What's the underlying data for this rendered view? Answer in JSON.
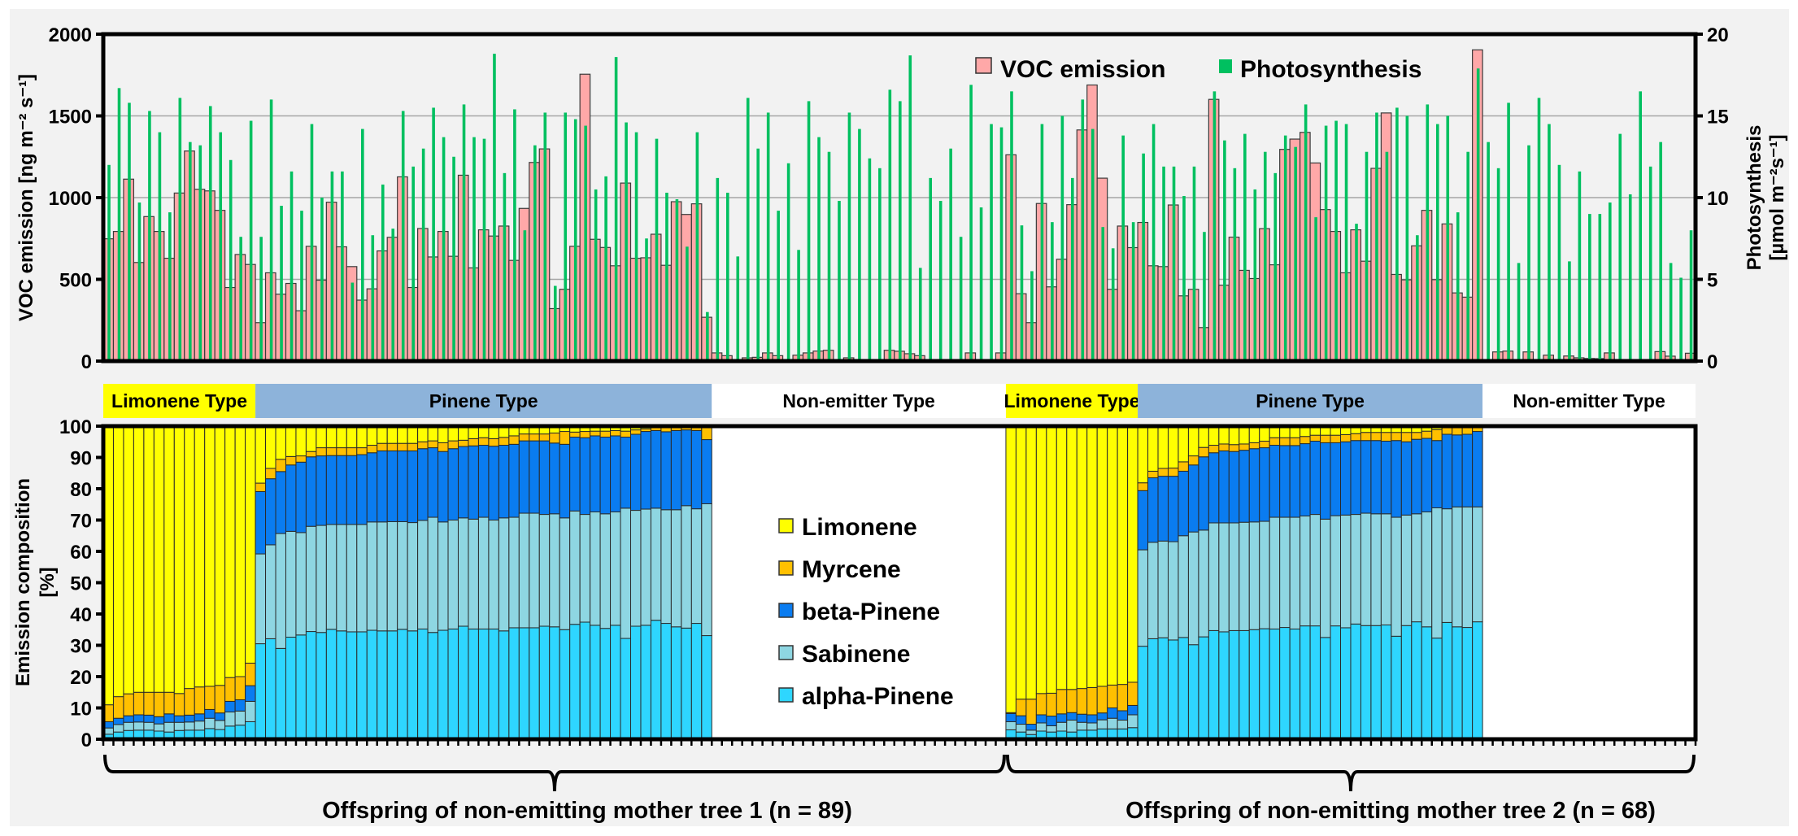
{
  "groups": [
    {
      "label": "Offspring of non-emitting mother tree 1 (n = 89)",
      "n": 89,
      "types": [
        {
          "name": "Limonene Type",
          "count": 15
        },
        {
          "name": "Pinene Type",
          "count": 45
        },
        {
          "name": "Non-emitter Type",
          "count": 29
        }
      ]
    },
    {
      "label": "Offspring of non-emitting mother tree 2 (n = 68)",
      "n": 68,
      "types": [
        {
          "name": "Limonene Type",
          "count": 13
        },
        {
          "name": "Pinene Type",
          "count": 34
        },
        {
          "name": "Non-emitter Type",
          "count": 21
        }
      ]
    }
  ],
  "type_colors": {
    "Limonene Type": "#ffff00",
    "Pinene Type": "#8db3da",
    "Non-emitter Type": "#ffffff"
  },
  "chart_data": [
    {
      "type": "bar",
      "title": "",
      "ylabel": "VOC emission [ng m⁻² s⁻¹]",
      "y2label": [
        "Photosynthesis",
        "[µmol m⁻²s⁻¹]"
      ],
      "ylim": [
        0,
        2000
      ],
      "yticks": [
        0,
        500,
        1000,
        1500,
        2000
      ],
      "y2lim": [
        0,
        20
      ],
      "y2ticks": [
        0,
        5,
        10,
        15,
        20
      ],
      "grid": true,
      "legend_position": "top-right",
      "series": [
        {
          "name": "VOC emission",
          "axis": "left",
          "color": "#ffa8a8",
          "values": [
            748,
            793,
            1113,
            603,
            884,
            793,
            629,
            1028,
            1285,
            1051,
            1041,
            922,
            450,
            652,
            591,
            235,
            540,
            409,
            475,
            308,
            702,
            495,
            972,
            699,
            578,
            373,
            442,
            674,
            757,
            1127,
            450,
            811,
            637,
            793,
            641,
            1137,
            570,
            803,
            765,
            826,
            616,
            934,
            1215,
            1298,
            321,
            439,
            702,
            1755,
            745,
            695,
            583,
            1089,
            629,
            632,
            776,
            586,
            975,
            897,
            962,
            268,
            50,
            33,
            0,
            20,
            23,
            50,
            33,
            0,
            36,
            50,
            61,
            66,
            0,
            20,
            0,
            0,
            0,
            66,
            60,
            45,
            33,
            0,
            0,
            0,
            0,
            50,
            0,
            0,
            50,
            1262,
            412,
            235,
            964,
            454,
            623,
            957,
            1414,
            1689,
            1119,
            439,
            826,
            694,
            848,
            583,
            578,
            955,
            399,
            439,
            205,
            1601,
            464,
            758,
            555,
            505,
            810,
            589,
            1295,
            1358,
            1399,
            1212,
            927,
            793,
            540,
            803,
            611,
            1179,
            1518,
            530,
            497,
            705,
            922,
            498,
            839,
            417,
            391,
            1904,
            0,
            56,
            61,
            0,
            56,
            0,
            36,
            0,
            31,
            20,
            16,
            15,
            50,
            0,
            0,
            0,
            0,
            58,
            30,
            0,
            48
          ]
        },
        {
          "name": "Photosynthesis",
          "axis": "right",
          "color": "#00c060",
          "values": [
            12.0,
            16.7,
            15.8,
            9.7,
            15.3,
            14.0,
            9.1,
            16.1,
            13.4,
            13.2,
            15.6,
            14.0,
            12.3,
            7.6,
            14.7,
            7.6,
            16.0,
            9.5,
            11.6,
            9.2,
            14.5,
            10.0,
            11.6,
            11.6,
            4.8,
            14.2,
            7.7,
            10.8,
            8.1,
            15.3,
            11.9,
            13.0,
            15.5,
            13.7,
            12.5,
            15.7,
            13.7,
            13.6,
            18.8,
            11.5,
            15.4,
            8.0,
            13.2,
            15.2,
            4.6,
            15.2,
            14.8,
            14.4,
            10.5,
            11.3,
            18.6,
            14.6,
            14.0,
            7.5,
            13.6,
            10.3,
            9.9,
            7.0,
            14.0,
            3.0,
            11.2,
            10.3,
            6.4,
            16.1,
            13.0,
            15.2,
            9.2,
            12.1,
            6.8,
            15.9,
            13.7,
            12.8,
            9.8,
            15.2,
            14.2,
            12.4,
            11.8,
            16.6,
            15.9,
            18.7,
            5.7,
            11.2,
            9.8,
            13.0,
            7.6,
            16.9,
            9.4,
            14.5,
            14.3,
            16.5,
            8.3,
            5.5,
            14.5,
            8.5,
            15.0,
            11.2,
            16.0,
            14.2,
            8.2,
            6.9,
            13.8,
            8.5,
            12.7,
            14.5,
            11.9,
            11.9,
            10.1,
            11.9,
            7.9,
            16.5,
            13.5,
            11.8,
            13.9,
            10.5,
            12.8,
            11.5,
            13.8,
            13.1,
            15.7,
            8.8,
            14.4,
            14.7,
            14.5,
            8.4,
            12.8,
            15.2,
            12.8,
            15.5,
            15.0,
            7.7,
            15.7,
            14.5,
            15.0,
            9.1,
            12.8,
            17.9,
            13.4,
            11.8,
            15.8,
            6.0,
            13.2,
            16.1,
            14.5,
            12.0,
            6.1,
            11.6,
            9.0,
            9.0,
            9.7,
            13.9,
            10.2,
            16.5,
            11.9,
            13.4,
            6.0,
            5.1,
            8.0
          ]
        }
      ]
    },
    {
      "type": "bar",
      "stacked": true,
      "title": "",
      "ylabel": [
        "Emission composition",
        "[%]"
      ],
      "ylim": [
        0,
        100
      ],
      "yticks": [
        0,
        10,
        20,
        30,
        40,
        50,
        60,
        70,
        80,
        90,
        100
      ],
      "legend_position": "center",
      "species": [
        {
          "name": "alpha-Pinene",
          "color": "#2ed6ff"
        },
        {
          "name": "Sabinene",
          "color": "#8ed6e2"
        },
        {
          "name": "beta-Pinene",
          "color": "#0a7cf0"
        },
        {
          "name": "Myrcene",
          "color": "#ffc000"
        },
        {
          "name": "Limonene",
          "color": "#ffff00"
        }
      ],
      "legend_order": [
        "Limonene",
        "Myrcene",
        "beta-Pinene",
        "Sabinene",
        "alpha-Pinene"
      ],
      "note": "values listed for emitting offspring of each group; non-emitters have no composition",
      "groups": [
        {
          "alpha-Pinene": [
            1.6,
            2.3,
            2.8,
            2.9,
            2.9,
            2.6,
            2.3,
            2.8,
            2.9,
            2.9,
            3.4,
            3.1,
            4.2,
            4.5,
            5.6,
            30.5,
            32.1,
            29.0,
            32.6,
            33.3,
            34.4,
            34.1,
            35.1,
            34.6,
            34.3,
            34.3,
            34.8,
            34.6,
            34.6,
            35.1,
            34.6,
            35.2,
            34.1,
            34.8,
            35.2,
            36.1,
            35.2,
            35.2,
            35.2,
            34.6,
            35.6,
            35.6,
            35.6,
            36.1,
            35.9,
            35.0,
            36.7,
            37.4,
            36.4,
            35.4,
            36.4,
            32.2,
            36.1,
            36.4,
            38.0,
            37.0,
            35.9,
            35.5,
            37.0,
            33.1
          ],
          "Sabinene": [
            2.0,
            2.4,
            2.6,
            2.6,
            2.5,
            2.3,
            3.1,
            2.6,
            2.6,
            2.9,
            3.3,
            2.9,
            4.5,
            4.5,
            6.5,
            28.7,
            30.0,
            36.7,
            33.8,
            32.7,
            33.6,
            34.2,
            33.5,
            34.0,
            34.3,
            34.3,
            34.6,
            34.8,
            34.9,
            34.4,
            34.6,
            34.7,
            36.8,
            34.6,
            34.8,
            34.6,
            35.1,
            35.7,
            34.8,
            36.1,
            35.3,
            36.6,
            36.6,
            35.7,
            36.1,
            35.7,
            36.2,
            34.4,
            36.2,
            36.6,
            36.2,
            41.6,
            37.0,
            37.1,
            35.8,
            36.3,
            37.4,
            39.1,
            36.6,
            42.1
          ],
          "beta-Pinene": [
            2.0,
            2.0,
            2.1,
            2.3,
            2.3,
            2.3,
            2.7,
            2.1,
            2.2,
            2.3,
            2.8,
            2.4,
            3.4,
            3.6,
            5.0,
            19.9,
            21.1,
            19.8,
            21.2,
            22.5,
            22.2,
            22.2,
            22.0,
            22.0,
            22.0,
            22.3,
            22.1,
            22.7,
            22.6,
            22.6,
            22.9,
            22.9,
            22.2,
            22.5,
            22.8,
            22.8,
            23.4,
            23.0,
            23.6,
            23.2,
            23.3,
            23.1,
            23.1,
            23.5,
            22.6,
            23.5,
            23.6,
            24.5,
            24.3,
            24.5,
            24.3,
            22.7,
            24.3,
            24.8,
            24.8,
            24.9,
            25.3,
            24.2,
            25.0,
            20.5
          ],
          "Myrcene": [
            5.4,
            6.9,
            7.0,
            7.2,
            7.3,
            7.8,
            6.9,
            7.1,
            8.5,
            8.6,
            7.4,
            8.8,
            7.6,
            7.4,
            7.2,
            2.7,
            3.3,
            3.9,
            2.7,
            2.0,
            1.7,
            2.6,
            2.5,
            2.5,
            2.5,
            2.2,
            2.4,
            2.4,
            2.4,
            2.4,
            2.4,
            2.2,
            2.2,
            2.8,
            2.5,
            2.0,
            2.3,
            2.4,
            2.4,
            2.5,
            2.7,
            2.2,
            2.2,
            2.2,
            3.2,
            4.1,
            1.6,
            2.0,
            1.5,
            1.9,
            1.7,
            1.9,
            1.4,
            0.8,
            1.1,
            1.5,
            1.1,
            0.9,
            1.1,
            4.0
          ],
          "Limonene": [
            89.0,
            86.4,
            85.5,
            85.0,
            85.0,
            85.0,
            85.0,
            85.4,
            83.8,
            83.3,
            83.1,
            82.8,
            80.3,
            80.0,
            75.7,
            18.2,
            13.5,
            10.6,
            9.7,
            9.5,
            8.1,
            6.9,
            6.9,
            6.9,
            6.9,
            6.9,
            6.1,
            5.5,
            5.5,
            5.5,
            5.5,
            5.0,
            4.7,
            5.3,
            4.7,
            4.5,
            4.0,
            3.7,
            4.0,
            3.6,
            3.1,
            2.5,
            2.5,
            2.5,
            2.2,
            1.7,
            1.9,
            1.7,
            1.6,
            1.6,
            1.4,
            1.6,
            1.2,
            0.9,
            0.3,
            0.3,
            0.3,
            0.3,
            0.3,
            0.3
          ]
        },
        {
          "alpha-Pinene": [
            3.0,
            2.3,
            1.5,
            2.6,
            2.3,
            2.6,
            2.3,
            2.9,
            2.9,
            3.3,
            3.3,
            3.3,
            3.7,
            29.7,
            32.1,
            32.4,
            31.7,
            32.5,
            30.2,
            32.7,
            34.7,
            34.3,
            34.7,
            34.7,
            35.0,
            35.3,
            35.2,
            35.7,
            35.2,
            36.2,
            36.2,
            32.5,
            36.2,
            35.6,
            36.8,
            36.3,
            36.3,
            36.5,
            32.9,
            36.3,
            37.5,
            35.9,
            32.3,
            37.3,
            35.9,
            35.7,
            37.5
          ],
          "Sabinene": [
            2.6,
            2.5,
            1.4,
            2.6,
            2.0,
            2.8,
            3.8,
            2.5,
            2.3,
            2.9,
            3.4,
            2.8,
            4.1,
            30.8,
            30.8,
            30.9,
            31.4,
            32.5,
            36.0,
            34.1,
            34.4,
            34.8,
            34.4,
            34.6,
            34.4,
            34.3,
            35.7,
            35.2,
            35.7,
            35.1,
            35.6,
            37.8,
            35.2,
            36.0,
            35.0,
            35.9,
            35.7,
            35.5,
            38.0,
            35.3,
            34.5,
            36.7,
            41.6,
            36.3,
            38.3,
            38.5,
            36.7
          ],
          "beta-Pinene": [
            2.6,
            2.7,
            1.9,
            2.6,
            3.1,
            2.7,
            2.4,
            2.6,
            2.6,
            2.2,
            3.3,
            3.0,
            3.0,
            18.9,
            20.6,
            20.7,
            20.9,
            20.6,
            21.4,
            23.4,
            22.4,
            23.0,
            22.8,
            23.0,
            23.4,
            23.5,
            23.0,
            22.9,
            22.9,
            23.1,
            23.4,
            24.4,
            23.3,
            23.4,
            23.6,
            23.2,
            23.4,
            23.2,
            24.5,
            23.4,
            23.8,
            23.5,
            21.5,
            23.8,
            23.0,
            23.2,
            24.1
          ],
          "Myrcene": [
            0.3,
            5.3,
            8.0,
            6.8,
            7.3,
            7.8,
            7.4,
            8.2,
            8.7,
            8.5,
            7.3,
            8.4,
            7.4,
            2.5,
            2.1,
            2.5,
            2.6,
            3.0,
            2.9,
            3.0,
            2.4,
            2.2,
            2.2,
            2.0,
            1.9,
            2.1,
            2.4,
            2.5,
            2.5,
            2.3,
            1.9,
            2.4,
            2.4,
            2.3,
            2.2,
            2.6,
            2.6,
            2.8,
            2.6,
            3.0,
            2.2,
            2.3,
            3.5,
            2.5,
            2.8,
            2.6,
            1.7
          ],
          "Limonene": [
            91.5,
            87.2,
            87.2,
            85.4,
            85.3,
            84.1,
            84.1,
            83.8,
            83.5,
            83.1,
            82.7,
            82.5,
            81.8,
            18.1,
            14.4,
            13.5,
            13.4,
            11.4,
            9.5,
            6.8,
            6.1,
            5.7,
            5.9,
            5.7,
            5.3,
            4.8,
            3.7,
            3.7,
            3.7,
            3.3,
            2.9,
            2.9,
            2.9,
            2.7,
            2.4,
            2.0,
            2.0,
            2.0,
            2.0,
            2.0,
            2.0,
            1.6,
            1.1,
            0.1,
            0,
            0,
            0
          ]
        }
      ]
    }
  ]
}
